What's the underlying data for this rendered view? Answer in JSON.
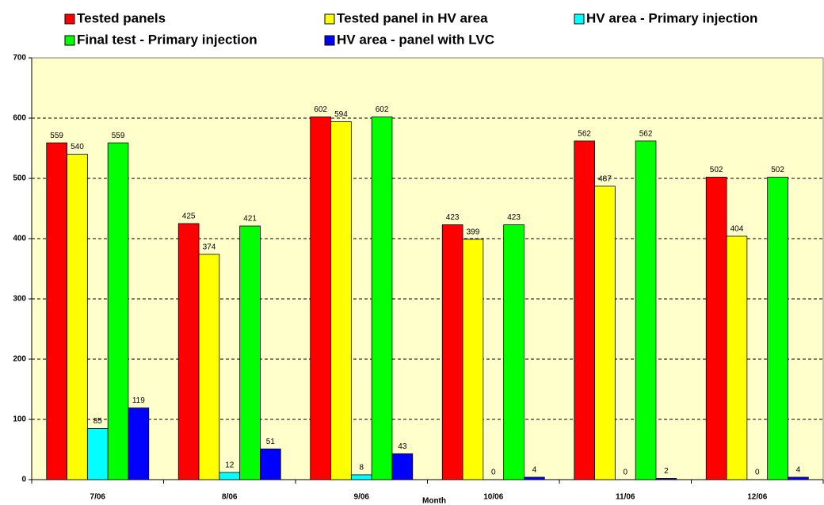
{
  "chart_data": {
    "type": "bar",
    "x_label": "Month",
    "categories": [
      "7/06",
      "8/06",
      "9/06",
      "10/06",
      "11/06",
      "12/06"
    ],
    "series": [
      {
        "name": "Tested panels",
        "color": "#ff0000",
        "values": [
          559,
          425,
          602,
          423,
          562,
          502
        ]
      },
      {
        "name": "Tested panel in HV area",
        "color": "#ffff00",
        "values": [
          540,
          374,
          594,
          399,
          487,
          404
        ]
      },
      {
        "name": "HV area - Primary injection",
        "color": "#00ffff",
        "values": [
          85,
          12,
          8,
          0,
          0,
          0
        ]
      },
      {
        "name": "Final test - Primary injection",
        "color": "#00ff00",
        "values": [
          559,
          421,
          602,
          423,
          562,
          502
        ]
      },
      {
        "name": "HV area - panel with LVC",
        "color": "#0000ff",
        "values": [
          119,
          51,
          43,
          4,
          2,
          4
        ]
      }
    ],
    "ylim": [
      0,
      700
    ],
    "yticks": [
      0,
      100,
      200,
      300,
      400,
      500,
      600,
      700
    ],
    "grid": true,
    "legend": "top"
  }
}
